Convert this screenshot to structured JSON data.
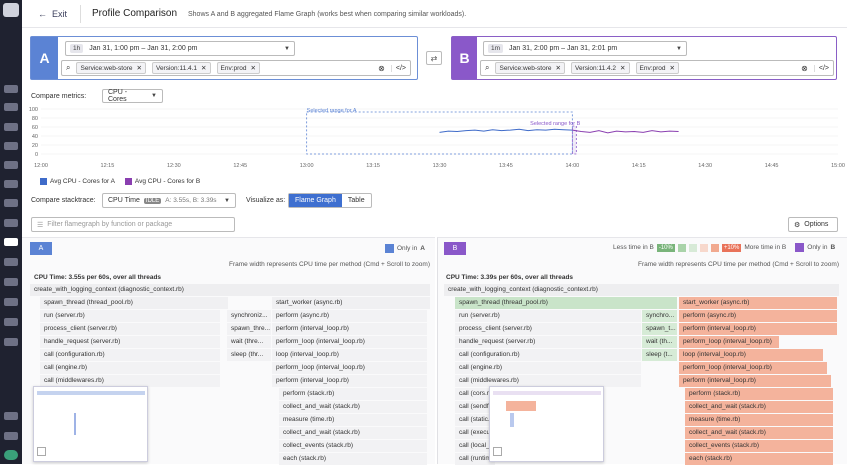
{
  "header": {
    "exit_label": "Exit",
    "title": "Profile Comparison",
    "subtitle": "Shows A and B aggregated Flame Graph (works best when comparing similar workloads)."
  },
  "panel_a": {
    "letter": "A",
    "time_badge": "1h",
    "time_range": "Jan 31, 1:00 pm – Jan 31, 2:00 pm",
    "tags": [
      "Service:web-store",
      "Version:11.4.1",
      "Env:prod"
    ]
  },
  "panel_b": {
    "letter": "B",
    "time_badge": "1m",
    "time_range": "Jan 31, 2:00 pm – Jan 31, 2:01 pm",
    "tags": [
      "Service:web-store",
      "Version:11.4.2",
      "Env:prod"
    ]
  },
  "compare_metrics": {
    "label": "Compare metrics:",
    "value": "CPU - Cores"
  },
  "chart_data": {
    "type": "line",
    "x_ticks": [
      "12:00",
      "12:15",
      "12:30",
      "12:45",
      "13:00",
      "13:15",
      "13:30",
      "13:45",
      "14:00",
      "14:15",
      "14:30",
      "14:45",
      "15:00"
    ],
    "y_ticks": [
      "0",
      "20",
      "40",
      "60",
      "80",
      "100"
    ],
    "ylim": [
      0,
      100
    ],
    "series": [
      {
        "name": "Avg CPU - Cores for A",
        "color": "#3f6bc9",
        "x": [
          "13:30",
          "13:32",
          "13:34",
          "13:36",
          "13:38",
          "13:40",
          "13:42",
          "13:44",
          "13:46",
          "13:48",
          "13:50",
          "13:52",
          "13:54",
          "13:56",
          "13:58",
          "14:00"
        ],
        "values": [
          48,
          51,
          50,
          52,
          53,
          51,
          54,
          52,
          53,
          55,
          52,
          54,
          53,
          55,
          54,
          53
        ]
      },
      {
        "name": "Avg CPU - Cores for B",
        "color": "#8a3fb0",
        "x": [
          "14:00",
          "14:02",
          "14:04",
          "14:06",
          "14:08",
          "14:10",
          "14:12",
          "14:14",
          "14:16",
          "14:18",
          "14:20",
          "14:22",
          "14:24"
        ],
        "values": [
          53,
          50,
          48,
          52,
          47,
          51,
          49,
          50,
          48,
          52,
          49,
          51,
          50
        ]
      }
    ],
    "annotations": [
      "Selected range for A",
      "Selected range for B"
    ]
  },
  "compare_stacktrace": {
    "label": "Compare stacktrace:",
    "value": "CPU Time",
    "idle": "IDLE",
    "values": "A: 3.55s, B: 3.39s"
  },
  "visualize": {
    "label": "Visualize as:",
    "options": [
      "Flame Graph",
      "Table"
    ]
  },
  "filter": {
    "placeholder": "Filter flamegraph by function or package"
  },
  "options_label": "Options",
  "legend": {
    "a": "A",
    "b": "B",
    "only_a": "Only in",
    "only_a_letter": "A",
    "less": "Less time in B",
    "minus": "-10%",
    "plus": "+10%",
    "more": "More time in B",
    "only_b": "Only in",
    "only_b_letter": "B"
  },
  "frame_note": "Frame width represents CPU time per method (Cmd + Scroll to zoom)",
  "flame_a": {
    "header": "CPU Time: 3.55s per 60s, over all threads",
    "rows": [
      "create_with_logging_context (diagnostic_context.rb)",
      "spawn_thread (thread_pool.rb)",
      "start_worker (async.rb)",
      "run (server.rb)",
      "synchroniz...",
      "perform (async.rb)",
      "process_client (server.rb)",
      "spawn_thre...",
      "perform (interval_loop.rb)",
      "handle_request (server.rb)",
      "wait (thre...",
      "perform_loop (interval_loop.rb)",
      "call (configuration.rb)",
      "sleep (thr...",
      "loop (interval_loop.rb)",
      "call (engine.rb)",
      "perform_loop (interval_loop.rb)",
      "call (middlewares.rb)",
      "perform (interval_loop.rb)",
      "perform (stack.rb)",
      "collect_and_wait (stack.rb)",
      "measure (time.rb)",
      "collect_and_wait (stack.rb)",
      "collect_events (stack.rb)",
      "each (stack.rb)"
    ]
  },
  "flame_b": {
    "header": "CPU Time: 3.39s per 60s, over all threads",
    "rows": [
      "create_with_logging_context (diagnostic_context.rb)",
      "spawn_thread (thread_pool.rb)",
      "start_worker (async.rb)",
      "run (server.rb)",
      "synchro...",
      "perform (async.rb)",
      "process_client (server.rb)",
      "spawn_t...",
      "perform (interval_loop.rb)",
      "handle_request (server.rb)",
      "wait (th...",
      "perform_loop (interval_loop.rb)",
      "call (configuration.rb)",
      "sleep (t...",
      "loop (interval_loop.rb)",
      "call (engine.rb)",
      "perform_loop (interval_loop.rb)",
      "call (middlewares.rb)",
      "perform (interval_loop.rb)",
      "call (cors.rt",
      "perform (stack.rb)",
      "call (sendfil",
      "collect_and_wait (stack.rb)",
      "call (static.r",
      "measure (time.rb)",
      "call (execut",
      "collect_and_wait (stack.rb)",
      "call (local_c",
      "collect_events (stack.rb)",
      "call (runtim",
      "each (stack.rb)"
    ]
  }
}
